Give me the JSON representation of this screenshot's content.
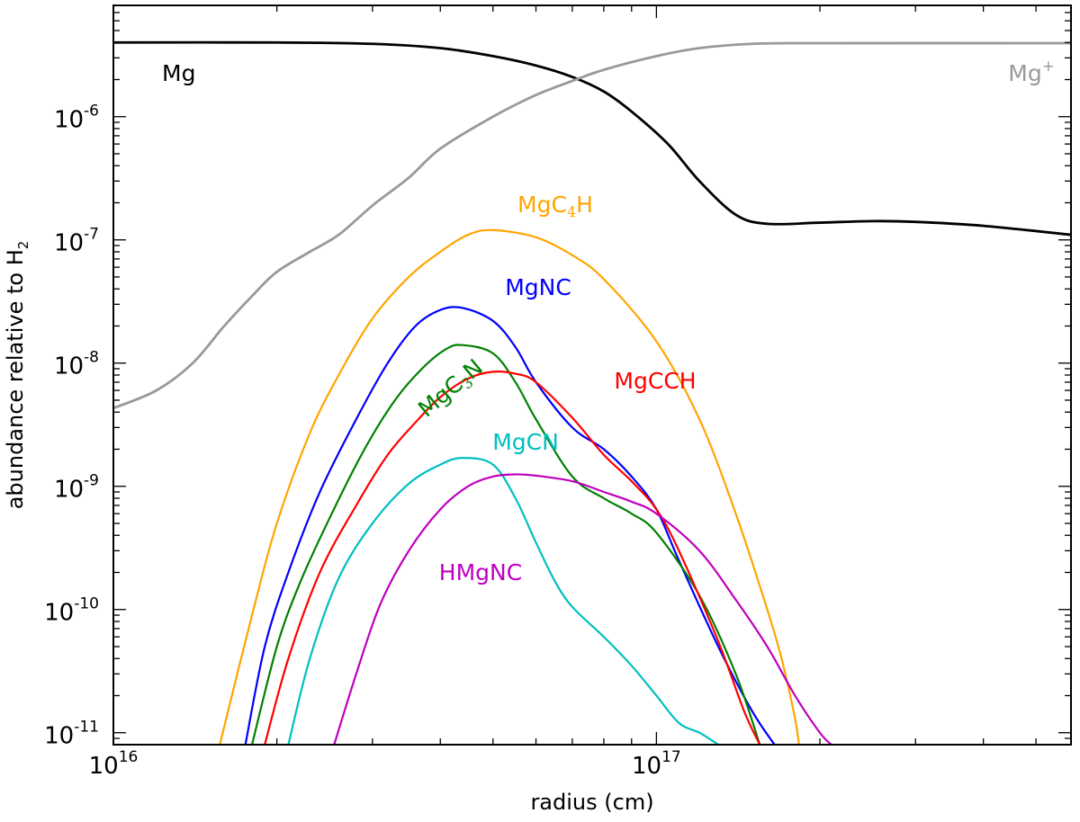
{
  "chart_data": {
    "type": "line",
    "title": "",
    "xlabel": "radius (cm)",
    "ylabel": "abundance relative to H",
    "ylabel_sub": "2",
    "xscale": "log",
    "yscale": "log",
    "xlim": [
      1e+16,
      5.8e+17
    ],
    "ylim": [
      8e-12,
      8e-06
    ],
    "grid": false,
    "legend": "inline labels",
    "xticks": [
      {
        "value": 1e+16,
        "base": "10",
        "exp": "16"
      },
      {
        "value": 1e+17,
        "base": "10",
        "exp": "17"
      }
    ],
    "yticks": [
      {
        "value": 1e-06,
        "base": "10",
        "exp": "-6"
      },
      {
        "value": 1e-07,
        "base": "10",
        "exp": "-7"
      },
      {
        "value": 1e-08,
        "base": "10",
        "exp": "-8"
      },
      {
        "value": 1e-09,
        "base": "10",
        "exp": "-9"
      },
      {
        "value": 1e-10,
        "base": "10",
        "exp": "-10"
      },
      {
        "value": 1e-11,
        "base": "10",
        "exp": "-11"
      }
    ],
    "series": [
      {
        "name": "Mg",
        "label": {
          "main": "Mg",
          "sub": "",
          "sup": "",
          "tail": ""
        },
        "color": "#000000",
        "x": [
          1e+16,
          2e+16,
          3e+16,
          4e+16,
          5e+16,
          6e+16,
          7e+16,
          8e+16,
          9e+16,
          1.05e+17,
          1.2e+17,
          1.4e+17,
          1.6e+17,
          2e+17,
          2.5e+17,
          3e+17,
          4e+17,
          5.8e+17
        ],
        "y": [
          4e-06,
          4e-06,
          3.9e-06,
          3.6e-06,
          3.1e-06,
          2.6e-06,
          2.1e-06,
          1.6e-06,
          1.1e-06,
          6e-07,
          3e-07,
          1.6e-07,
          1.35e-07,
          1.38e-07,
          1.42e-07,
          1.4e-07,
          1.3e-07,
          1.1e-07
        ]
      },
      {
        "name": "Mg+",
        "label": {
          "main": "Mg",
          "sub": "",
          "sup": "+",
          "tail": ""
        },
        "color": "#999999",
        "x": [
          1e+16,
          1.2e+16,
          1.4e+16,
          1.6e+16,
          1.8e+16,
          2e+16,
          2.3e+16,
          2.6e+16,
          3e+16,
          3.5e+16,
          4e+16,
          5e+16,
          6e+16,
          7e+16,
          8e+16,
          1e+17,
          1.2e+17,
          1.5e+17,
          2e+17,
          5.8e+17
        ],
        "y": [
          4.3e-09,
          6e-09,
          1e-08,
          2e-08,
          3.5e-08,
          5.5e-08,
          8e-08,
          1.1e-07,
          1.9e-07,
          3.2e-07,
          5.5e-07,
          1e-06,
          1.5e-06,
          1.95e-06,
          2.4e-06,
          3.1e-06,
          3.6e-06,
          3.9e-06,
          3.95e-06,
          3.95e-06
        ]
      },
      {
        "name": "MgC4H",
        "label": {
          "main": "MgC",
          "sub": "4",
          "sup": "",
          "tail": "H"
        },
        "color": "#ffa500",
        "x": [
          1.57e+16,
          1.8e+16,
          2e+16,
          2.3e+16,
          2.6e+16,
          3e+16,
          3.5e+16,
          4e+16,
          4.5e+16,
          5e+16,
          6e+16,
          7e+16,
          8e+16,
          1e+17,
          1.2e+17,
          1.4e+17,
          1.6e+17,
          1.7e+17,
          1.8e+17,
          1.83e+17
        ],
        "y": [
          8e-12,
          9e-11,
          5e-10,
          2.7e-09,
          8e-09,
          2.3e-08,
          5e-08,
          8e-08,
          1.1e-07,
          1.2e-07,
          1.05e-07,
          7.5e-08,
          4.8e-08,
          1.5e-08,
          3.5e-09,
          6e-10,
          1e-10,
          4e-11,
          1.3e-11,
          8e-12
        ]
      },
      {
        "name": "MgNC",
        "label": {
          "main": "MgNC",
          "sub": "",
          "sup": "",
          "tail": ""
        },
        "color": "#0000ff",
        "x": [
          1.75e+16,
          1.9e+16,
          2.1e+16,
          2.4e+16,
          2.8e+16,
          3.2e+16,
          3.6e+16,
          4e+16,
          4.4e+16,
          5e+16,
          5.5e+16,
          6e+16,
          7e+16,
          8e+16,
          9e+16,
          1e+17,
          1.1e+17,
          1.3e+17,
          1.5e+17,
          1.65e+17
        ],
        "y": [
          8e-12,
          5e-11,
          2e-10,
          9e-10,
          3.5e-09,
          1e-08,
          2e-08,
          2.7e-08,
          2.8e-08,
          2.2e-08,
          1.35e-08,
          7e-09,
          3e-09,
          2e-09,
          1.2e-09,
          6.5e-10,
          2.5e-10,
          5e-11,
          1.5e-11,
          8e-12
        ]
      },
      {
        "name": "MgC3N",
        "label": {
          "main": "MgC",
          "sub": "3",
          "sup": "",
          "tail": "N"
        },
        "color": "#008000",
        "x": [
          1.8e+16,
          2e+16,
          2.2e+16,
          2.5e+16,
          2.9e+16,
          3.3e+16,
          3.7e+16,
          4.1e+16,
          4.4e+16,
          5e+16,
          5.5e+16,
          6e+16,
          7e+16,
          8e+16,
          9e+16,
          1e+17,
          1.2e+17,
          1.4e+17,
          1.55e+17
        ],
        "y": [
          8e-12,
          5e-11,
          1.6e-10,
          5.5e-10,
          2e-09,
          5e-09,
          9e-09,
          1.3e-08,
          1.4e-08,
          1.2e-08,
          7e-09,
          3.5e-09,
          1.2e-09,
          8e-10,
          6e-10,
          4.2e-10,
          1.3e-10,
          3e-11,
          8e-12
        ]
      },
      {
        "name": "MgCCH",
        "label": {
          "main": "MgCCH",
          "sub": "",
          "sup": "",
          "tail": ""
        },
        "color": "#ff0000",
        "x": [
          1.9e+16,
          2.1e+16,
          2.4e+16,
          2.8e+16,
          3.2e+16,
          3.6e+16,
          4e+16,
          4.5e+16,
          5e+16,
          5.5e+16,
          6e+16,
          7e+16,
          8e+16,
          9e+16,
          1e+17,
          1.1e+17,
          1.3e+17,
          1.45e+17,
          1.55e+17
        ],
        "y": [
          8e-12,
          4e-11,
          2e-10,
          7e-10,
          1.8e-09,
          3.3e-09,
          5.3e-09,
          7.5e-09,
          8.5e-09,
          8.2e-09,
          7e-09,
          3.6e-09,
          1.8e-09,
          1.1e-09,
          6.5e-10,
          3e-10,
          5.5e-11,
          1.5e-11,
          8e-12
        ]
      },
      {
        "name": "MgCN",
        "label": {
          "main": "MgCN",
          "sub": "",
          "sup": "",
          "tail": ""
        },
        "color": "#00bfbf",
        "x": [
          2.1e+16,
          2.3e+16,
          2.6e+16,
          3e+16,
          3.5e+16,
          4e+16,
          4.4e+16,
          5e+16,
          5.5e+16,
          6e+16,
          6.5e+16,
          7e+16,
          8e+16,
          9e+16,
          1e+17,
          1.1e+17,
          1.2e+17,
          1.3e+17
        ],
        "y": [
          8e-12,
          4e-11,
          1.8e-10,
          5e-10,
          1.05e-09,
          1.5e-09,
          1.7e-09,
          1.5e-09,
          8e-10,
          3.5e-10,
          1.7e-10,
          1.05e-10,
          6e-11,
          3.5e-11,
          2e-11,
          1.2e-11,
          1e-11,
          8e-12
        ]
      },
      {
        "name": "HMgNC",
        "label": {
          "main": "HMgNC",
          "sub": "",
          "sup": "",
          "tail": ""
        },
        "color": "#bf00bf",
        "x": [
          2.55e+16,
          2.8e+16,
          3.1e+16,
          3.5e+16,
          4e+16,
          4.5e+16,
          5e+16,
          5.5e+16,
          6e+16,
          7e+16,
          8e+16,
          9e+16,
          1e+17,
          1.2e+17,
          1.4e+17,
          1.6e+17,
          1.8e+17,
          2e+17,
          2.1e+17
        ],
        "y": [
          8e-12,
          3e-11,
          1.1e-10,
          3e-10,
          6.5e-10,
          1e-09,
          1.2e-09,
          1.25e-09,
          1.22e-09,
          1.1e-09,
          9e-10,
          7.5e-10,
          6e-10,
          3e-10,
          1.2e-10,
          5e-11,
          2e-11,
          1e-11,
          8e-12
        ]
      }
    ]
  }
}
